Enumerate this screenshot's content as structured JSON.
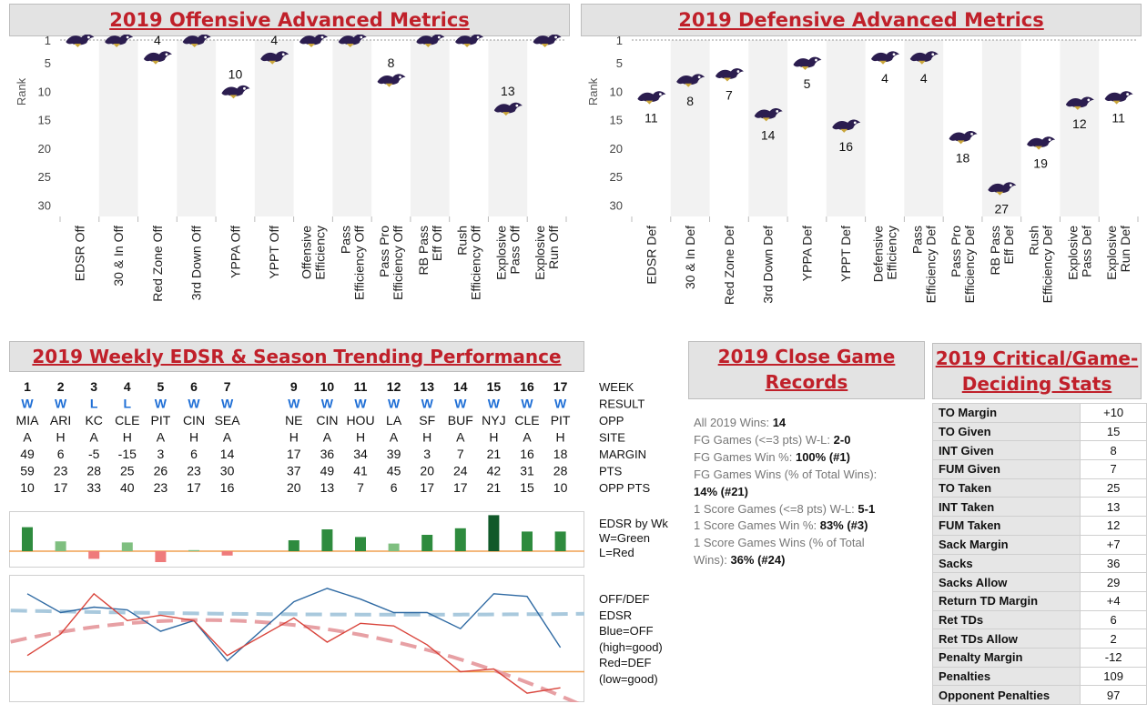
{
  "colors": {
    "title_red": "#c0202a",
    "win_blue": "#1f6fd6",
    "loss_blue": "#1f6fd6",
    "off_line": "#2f6aa3",
    "def_line": "#d9453c",
    "off_trend": "#a9c9dd",
    "def_trend": "#e7a0a4",
    "zero_line": "#f0a050",
    "bar_green": "#2e8b3e",
    "bar_red": "#ef7b7b"
  },
  "offense": {
    "title": "2019 Offensive Advanced Metrics",
    "ylabel": "Rank",
    "yticks": [
      1,
      5,
      10,
      15,
      20,
      25,
      30
    ],
    "chart_data": {
      "type": "scatter",
      "categories": [
        "EDSR Off",
        "30 & In Off",
        "Red Zone Off",
        "3rd Down Off",
        "YPPA Off",
        "YPPT Off",
        "Offensive Efficiency",
        "Pass Efficiency Off",
        "Pass Pro Efficiency Off",
        "RB Pass Eff Off",
        "Rush Efficiency Off",
        "Explosive Pass Off",
        "Explosive Run Off"
      ],
      "values": [
        1,
        1,
        4,
        1,
        10,
        4,
        1,
        1,
        8,
        1,
        1,
        13,
        1
      ],
      "labels": [
        "",
        "",
        "4",
        "",
        "10",
        "4",
        "",
        "",
        "8",
        "",
        "",
        "13",
        ""
      ],
      "ylim": [
        1,
        32
      ]
    }
  },
  "defense": {
    "title": "2019 Defensive Advanced Metrics",
    "ylabel": "Rank",
    "yticks": [
      1,
      5,
      10,
      15,
      20,
      25,
      30
    ],
    "chart_data": {
      "type": "scatter",
      "categories": [
        "EDSR Def",
        "30 & In Def",
        "Red Zone Def",
        "3rd Down Def",
        "YPPA Def",
        "YPPT Def",
        "Defensive Efficiency",
        "Pass Efficiency Def",
        "Pass Pro Efficiency Def",
        "RB Pass Eff Def",
        "Rush Efficiency Def",
        "Explosive Pass Def",
        "Explosive Run Def"
      ],
      "values": [
        11,
        8,
        7,
        14,
        5,
        16,
        4,
        4,
        18,
        27,
        19,
        12,
        11
      ],
      "labels": [
        "11",
        "8",
        "7",
        "14",
        "5",
        "16",
        "4",
        "4",
        "18",
        "27",
        "19",
        "12",
        "11"
      ],
      "ylim": [
        1,
        32
      ]
    }
  },
  "weekly": {
    "title": "2019 Weekly EDSR & Season Trending Performance",
    "row_labels": [
      "WEEK",
      "RESULT",
      "OPP",
      "SITE",
      "MARGIN",
      "PTS",
      "OPP PTS"
    ],
    "weeks": [
      1,
      2,
      3,
      4,
      5,
      6,
      7,
      null,
      9,
      10,
      11,
      12,
      13,
      14,
      15,
      16,
      17
    ],
    "result": [
      "W",
      "W",
      "L",
      "L",
      "W",
      "W",
      "W",
      "",
      "W",
      "W",
      "W",
      "W",
      "W",
      "W",
      "W",
      "W",
      "W"
    ],
    "opp": [
      "MIA",
      "ARI",
      "KC",
      "CLE",
      "PIT",
      "CIN",
      "SEA",
      "",
      "NE",
      "CIN",
      "HOU",
      "LA",
      "SF",
      "BUF",
      "NYJ",
      "CLE",
      "PIT"
    ],
    "site": [
      "A",
      "H",
      "A",
      "H",
      "A",
      "H",
      "A",
      "",
      "H",
      "A",
      "H",
      "A",
      "H",
      "A",
      "H",
      "A",
      "H"
    ],
    "margin": [
      "49",
      "6",
      "-5",
      "-15",
      "3",
      "6",
      "14",
      "",
      "17",
      "36",
      "34",
      "39",
      "3",
      "7",
      "21",
      "16",
      "18"
    ],
    "pts": [
      "59",
      "23",
      "28",
      "25",
      "26",
      "23",
      "30",
      "",
      "37",
      "49",
      "41",
      "45",
      "20",
      "24",
      "42",
      "31",
      "28"
    ],
    "opp_pts": [
      "10",
      "17",
      "33",
      "40",
      "23",
      "17",
      "16",
      "",
      "20",
      "13",
      "7",
      "6",
      "17",
      "17",
      "21",
      "15",
      "10"
    ],
    "bar_legend": [
      "EDSR by Wk",
      "W=Green",
      "L=Red"
    ],
    "line_legend": [
      "OFF/DEF",
      "EDSR",
      "Blue=OFF",
      "(high=good)",
      "Red=DEF",
      "(low=good)"
    ],
    "chart_data": [
      {
        "type": "bar",
        "title": "EDSR by Wk",
        "categories": [
          "1",
          "2",
          "3",
          "4",
          "5",
          "6",
          "7",
          "8",
          "9",
          "10",
          "11",
          "12",
          "13",
          "14",
          "15",
          "16",
          "17"
        ],
        "values": [
          2.2,
          0.9,
          -0.7,
          0.8,
          -1.0,
          0.1,
          -0.4,
          null,
          1.0,
          2.0,
          1.3,
          0.7,
          1.5,
          2.1,
          3.3,
          1.8,
          1.8
        ],
        "colors": [
          "g",
          "g",
          "r",
          "g",
          "r",
          "g",
          "r",
          null,
          "g",
          "g",
          "g",
          "g",
          "g",
          "g",
          "dg",
          "g",
          "g"
        ]
      },
      {
        "type": "line",
        "title": "OFF/DEF EDSR",
        "categories": [
          "1",
          "2",
          "3",
          "4",
          "5",
          "6",
          "7",
          "8",
          "9",
          "10",
          "11",
          "12",
          "13",
          "14",
          "15",
          "16",
          "17"
        ],
        "series": [
          {
            "name": "Blue=OFF",
            "values": [
              0.79,
              0.72,
              0.74,
              0.73,
              0.65,
              0.69,
              0.54,
              null,
              0.76,
              0.81,
              0.77,
              0.72,
              0.72,
              0.66,
              0.79,
              0.78,
              0.59
            ]
          },
          {
            "name": "Red=DEF",
            "values": [
              0.56,
              0.64,
              0.79,
              0.69,
              0.71,
              0.69,
              0.56,
              null,
              0.7,
              0.61,
              0.68,
              0.67,
              0.6,
              0.5,
              0.51,
              0.42,
              0.44
            ]
          }
        ]
      }
    ]
  },
  "close_games": {
    "title_line1": "2019 Close Game",
    "title_line2": "Records",
    "lines": [
      {
        "label": "All 2019 Wins: ",
        "value": "14"
      },
      {
        "label": "FG Games (<=3 pts) W-L: ",
        "value": "2-0"
      },
      {
        "label": "FG Games Win %: ",
        "value": "100% (#1)"
      },
      {
        "label": "FG Games Wins (% of Total Wins):",
        "value": ""
      },
      {
        "label": "",
        "value": "14% (#21)"
      },
      {
        "label": "1 Score Games (<=8 pts) W-L: ",
        "value": "5-1"
      },
      {
        "label": "1 Score Games Win %: ",
        "value": "83% (#3)"
      },
      {
        "label": "1 Score Games Wins (% of Total",
        "value": ""
      },
      {
        "label": "Wins): ",
        "value": "36% (#24)"
      }
    ]
  },
  "critical": {
    "title_line1": "2019 Critical/Game-",
    "title_line2": "Deciding Stats",
    "rows": [
      {
        "label": "TO Margin",
        "value": "+10"
      },
      {
        "label": "TO Given",
        "value": "15"
      },
      {
        "label": "INT Given",
        "value": "8"
      },
      {
        "label": "FUM Given",
        "value": "7"
      },
      {
        "label": "TO Taken",
        "value": "25"
      },
      {
        "label": "INT Taken",
        "value": "13"
      },
      {
        "label": "FUM Taken",
        "value": "12"
      },
      {
        "label": "Sack Margin",
        "value": "+7"
      },
      {
        "label": "Sacks",
        "value": "36"
      },
      {
        "label": "Sacks Allow",
        "value": "29"
      },
      {
        "label": "Return TD Margin",
        "value": "+4"
      },
      {
        "label": "Ret TDs",
        "value": "6"
      },
      {
        "label": "Ret TDs Allow",
        "value": "2"
      },
      {
        "label": "Penalty Margin",
        "value": "-12"
      },
      {
        "label": "Penalties",
        "value": "109"
      },
      {
        "label": "Opponent Penalties",
        "value": "97"
      }
    ]
  }
}
